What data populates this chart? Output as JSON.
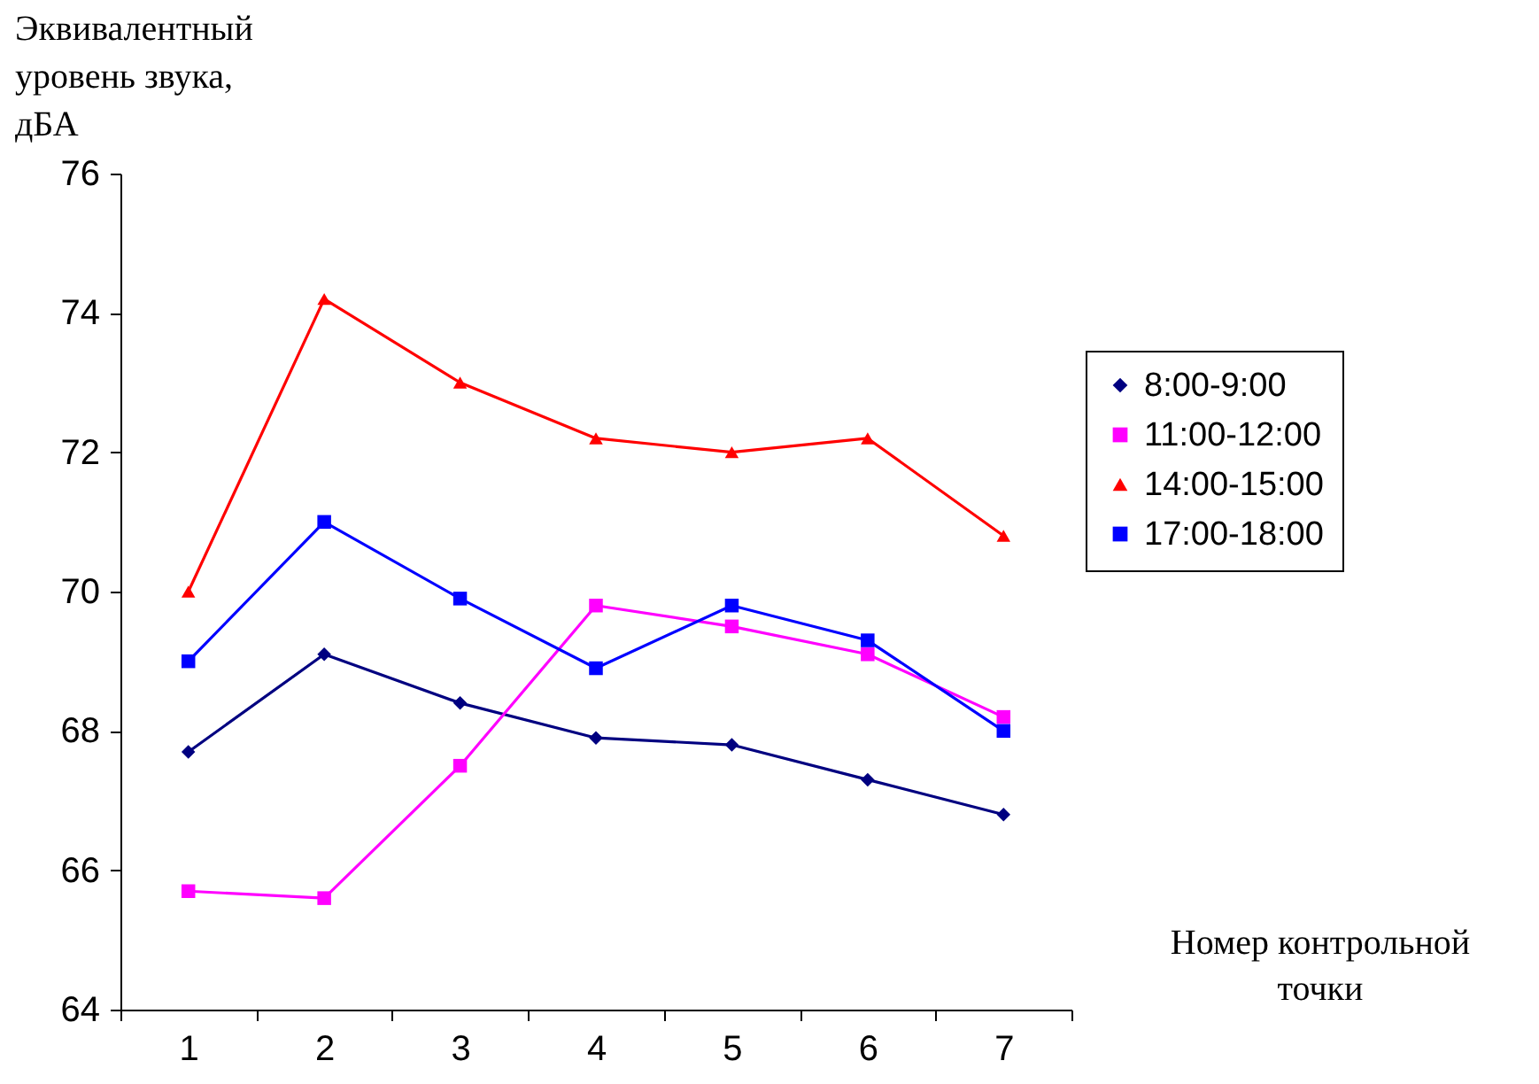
{
  "chart_data": {
    "type": "line",
    "ylabel": "Эквивалентный\nуровень звука,\nдБА",
    "xlabel": "Номер контрольной\nточки",
    "categories": [
      "1",
      "2",
      "3",
      "4",
      "5",
      "6",
      "7"
    ],
    "ylim": [
      64,
      76
    ],
    "yticks": [
      64,
      66,
      68,
      70,
      72,
      74,
      76
    ],
    "grid": false,
    "legend": "right",
    "line_style": "solid",
    "series": [
      {
        "name": "8:00-9:00",
        "color": "#000080",
        "marker": "diamond",
        "values": [
          67.7,
          69.1,
          68.4,
          67.9,
          67.8,
          67.3,
          66.8
        ]
      },
      {
        "name": "11:00-12:00",
        "color": "#ff00ff",
        "marker": "square",
        "values": [
          65.7,
          65.6,
          67.5,
          69.8,
          69.5,
          69.1,
          68.2
        ]
      },
      {
        "name": "14:00-15:00",
        "color": "#ff0000",
        "marker": "triangle",
        "values": [
          70.0,
          74.2,
          73.0,
          72.2,
          72.0,
          72.2,
          70.8
        ]
      },
      {
        "name": "17:00-18:00",
        "color": "#0000ff",
        "marker": "square",
        "values": [
          69.0,
          71.0,
          69.9,
          68.9,
          69.8,
          69.3,
          68.0
        ]
      }
    ]
  }
}
